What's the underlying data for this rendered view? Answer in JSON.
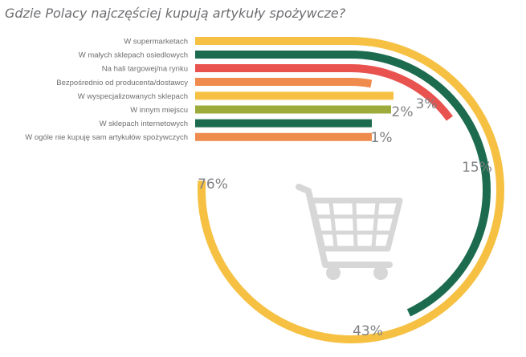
{
  "chart_data": {
    "type": "radial-bar",
    "title": "Gdzie Polacy najczęściej kupują artykuły spożywcze?",
    "categories": [
      "W supermarketach",
      "W małych sklepach osiedlowych",
      "Na hali targowej/na rynku",
      "Bezpośrednio od producenta/dostawcy",
      "W wyspecjalizowanych sklepach",
      "W innym miejscu",
      "W sklepach internetowych",
      "W ogóle nie kupuję sam artykułów spożywczych"
    ],
    "values": [
      76,
      43,
      15,
      3,
      null,
      2,
      null,
      1
    ],
    "labels": [
      "76%",
      "43%",
      "15%",
      "3%",
      "",
      "2%",
      "",
      "1%"
    ],
    "colors": [
      "#f6c143",
      "#1c6b4f",
      "#e9534f",
      "#ef8b4d",
      "#f6c143",
      "#9cab3a",
      "#1c6b4f",
      "#ef8b4d"
    ],
    "unit": "%"
  },
  "icon": "shopping-cart-icon"
}
